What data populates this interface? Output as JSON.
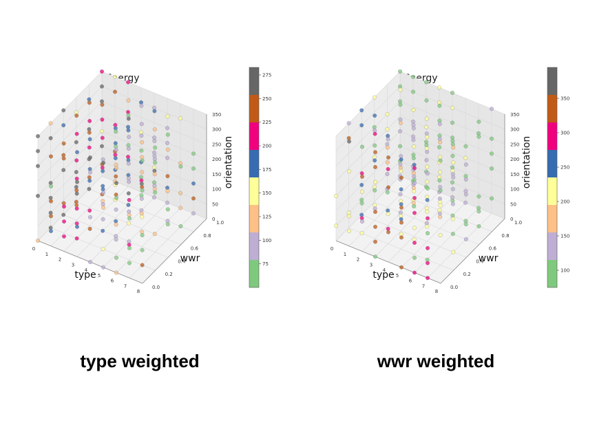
{
  "captions": {
    "left": "type weighted",
    "right": "wwr weighted"
  },
  "chart_data": [
    {
      "type": "scatter",
      "title": "Energy",
      "xlabel": "type",
      "ylabel": "wwr",
      "zlabel": "orientation",
      "x_ticks": [
        "0",
        "1",
        "2",
        "3",
        "4",
        "5",
        "6",
        "7",
        "8"
      ],
      "y_ticks": [
        "0.0",
        "0.2",
        "0.4",
        "0.6",
        "0.8",
        "1.0"
      ],
      "z_ticks": [
        "0",
        "50",
        "100",
        "150",
        "200",
        "250",
        "300",
        "350"
      ],
      "xlim": [
        0,
        8
      ],
      "ylim": [
        0,
        1
      ],
      "zlim": [
        0,
        350
      ],
      "grid": true,
      "colorbar": {
        "ticks": [
          "75",
          "100",
          "125",
          "150",
          "175",
          "200",
          "225",
          "250",
          "275"
        ],
        "range": [
          50,
          283
        ],
        "colors": [
          "#7fc97f",
          "#beaed4",
          "#fdc086",
          "#ffff99",
          "#386cb0",
          "#f0027f",
          "#bf5b17",
          "#666666"
        ]
      },
      "color_rule": "by_type",
      "point_values_note": "points on grid: type 0-7, wwr 0.0-1.0 step 0.2, orientation 0-350 step 50"
    },
    {
      "type": "scatter",
      "title": "Energy",
      "xlabel": "type",
      "ylabel": "wwr",
      "zlabel": "orientation",
      "x_ticks": [
        "0",
        "1",
        "2",
        "3",
        "4",
        "5",
        "6",
        "7",
        "8"
      ],
      "y_ticks": [
        "0.0",
        "0.2",
        "0.4",
        "0.6",
        "0.8",
        "1.0"
      ],
      "z_ticks": [
        "0",
        "50",
        "100",
        "150",
        "200",
        "250",
        "300",
        "350"
      ],
      "xlim": [
        0,
        8
      ],
      "ylim": [
        0,
        1
      ],
      "zlim": [
        0,
        350
      ],
      "grid": true,
      "colorbar": {
        "ticks": [
          "100",
          "150",
          "200",
          "250",
          "300",
          "350"
        ],
        "range": [
          75,
          395
        ],
        "colors": [
          "#7fc97f",
          "#beaed4",
          "#fdc086",
          "#ffff99",
          "#386cb0",
          "#f0027f",
          "#bf5b17",
          "#666666"
        ]
      },
      "color_rule": "by_wwr"
    }
  ]
}
